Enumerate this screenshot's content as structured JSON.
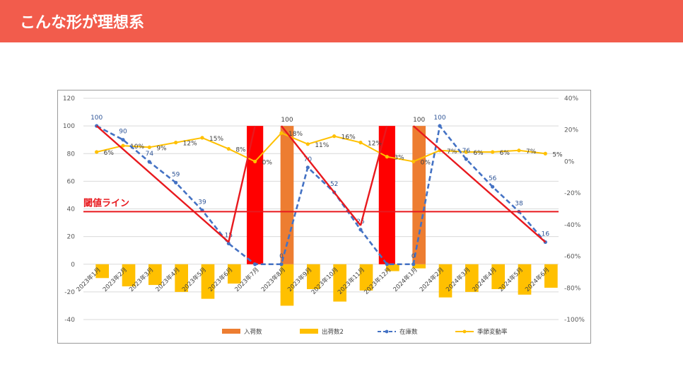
{
  "header": {
    "title": "こんな形が理想系"
  },
  "chart_data": {
    "type": "bar",
    "categories": [
      "2023年1月",
      "2023年2月",
      "2023年3月",
      "2023年4月",
      "2023年5月",
      "2023年6月",
      "2023年7月",
      "2023年8月",
      "2023年9月",
      "2023年10月",
      "2023年11月",
      "2023年12月",
      "2024年1月",
      "2024年2月",
      "2024年3月",
      "2024年4月",
      "2024年5月",
      "2024年6月"
    ],
    "left_axis": {
      "ylim": [
        -40,
        120
      ],
      "ticks": [
        "-40",
        "-20",
        "0",
        "20",
        "40",
        "60",
        "80",
        "100",
        "120"
      ]
    },
    "right_axis": {
      "ylim": [
        -100,
        40
      ],
      "ticks": [
        "-100%",
        "-80%",
        "-60%",
        "-40%",
        "-20%",
        "0%",
        "20%",
        "40%"
      ]
    },
    "series": [
      {
        "name": "入荷数",
        "kind": "bar",
        "axis": "left",
        "color": "#ed7d31",
        "values": [
          0,
          0,
          0,
          0,
          0,
          0,
          0,
          100,
          0,
          0,
          0,
          0,
          100,
          0,
          0,
          0,
          0,
          0
        ]
      },
      {
        "name": "出荷数2",
        "kind": "bar",
        "axis": "left",
        "color": "#ffc000",
        "values": [
          -10,
          -16,
          -15,
          -20,
          -25,
          -14,
          0,
          -30,
          -18,
          -27,
          -19,
          -5,
          -3,
          -24,
          -20,
          -18,
          -22,
          -17
        ]
      },
      {
        "name": "在庫数",
        "kind": "dashed-line",
        "axis": "left",
        "color": "#4472c4",
        "values": [
          100,
          90,
          74,
          59,
          39,
          15,
          0,
          0,
          70,
          52,
          25,
          0,
          0,
          100,
          76,
          56,
          38,
          16
        ],
        "labels": [
          "100",
          "90",
          "74",
          "59",
          "39",
          "15",
          "",
          "0",
          "70",
          "52",
          "25",
          "",
          "0",
          "100",
          "76",
          "56",
          "38",
          "16"
        ]
      },
      {
        "name": "季節変動率",
        "kind": "line",
        "axis": "right",
        "color": "#ffc000",
        "values": [
          6,
          10,
          9,
          12,
          15,
          8,
          0,
          18,
          11,
          16,
          12,
          3,
          0,
          7,
          6,
          6,
          7,
          5
        ],
        "labels": [
          "6%",
          "10%",
          "9%",
          "12%",
          "15%",
          "8%",
          "0%",
          "18%",
          "11%",
          "16%",
          "12%",
          "3%",
          "0%",
          "7%",
          "6%",
          "6%",
          "7%",
          "5%"
        ]
      }
    ],
    "threshold": {
      "label": "閾値ライン",
      "value": 38,
      "color": "#e8191e"
    },
    "annotations": [
      {
        "kind": "red-bar",
        "category": "2023年7月",
        "from": 0,
        "to": 100
      },
      {
        "kind": "red-bar",
        "category": "2023年12月",
        "from": 0,
        "to": 100
      },
      {
        "kind": "red-segment",
        "from": [
          "2023年1月",
          100
        ],
        "to": [
          "2023年6月",
          16
        ]
      },
      {
        "kind": "red-segment",
        "from": [
          "2023年6月",
          16
        ],
        "to": [
          "2023年7月",
          100
        ]
      },
      {
        "kind": "red-segment",
        "from": [
          "2023年8月",
          100
        ],
        "to": [
          "2023年11月",
          28
        ]
      },
      {
        "kind": "red-segment",
        "from": [
          "2023年11月",
          28
        ],
        "to": [
          "2023年12月",
          100
        ]
      },
      {
        "kind": "red-segment",
        "from": [
          "2024年1月",
          100
        ],
        "to": [
          "2024年6月",
          16
        ]
      }
    ],
    "legend_position": "bottom",
    "grid": true
  }
}
